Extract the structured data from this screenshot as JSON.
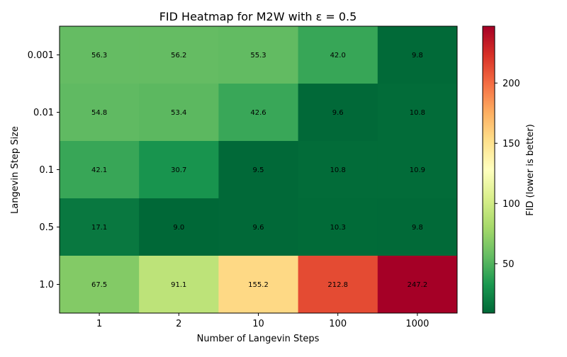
{
  "chart_data": {
    "type": "heatmap",
    "title": "FID Heatmap for M2W with ε = 0.5",
    "xlabel": "Number of Langevin Steps",
    "ylabel": "Langevin Step Size",
    "x_categories": [
      "1",
      "2",
      "10",
      "100",
      "1000"
    ],
    "y_categories": [
      "0.001",
      "0.01",
      "0.1",
      "0.5",
      "1.0"
    ],
    "values": [
      [
        56.3,
        56.2,
        55.3,
        42.0,
        9.8
      ],
      [
        54.8,
        53.4,
        42.6,
        9.6,
        10.8
      ],
      [
        42.1,
        30.7,
        9.5,
        10.8,
        10.9
      ],
      [
        17.1,
        9.0,
        9.6,
        10.3,
        9.8
      ],
      [
        67.5,
        91.1,
        155.2,
        212.8,
        247.2
      ]
    ],
    "value_labels": [
      [
        "56.3",
        "56.2",
        "55.3",
        "42.0",
        "9.8"
      ],
      [
        "54.8",
        "53.4",
        "42.6",
        "9.6",
        "10.8"
      ],
      [
        "42.1",
        "30.7",
        "9.5",
        "10.8",
        "10.9"
      ],
      [
        "17.1",
        "9.0",
        "9.6",
        "10.3",
        "9.8"
      ],
      [
        "67.5",
        "91.1",
        "155.2",
        "212.8",
        "247.2"
      ]
    ],
    "colormap": "RdYlGn_r",
    "color_range": [
      9.0,
      247.2
    ],
    "colorbar": {
      "label": "FID (lower is better)",
      "ticks": [
        50,
        100,
        150,
        200
      ],
      "tick_labels": [
        "50",
        "100",
        "150",
        "200"
      ]
    }
  }
}
